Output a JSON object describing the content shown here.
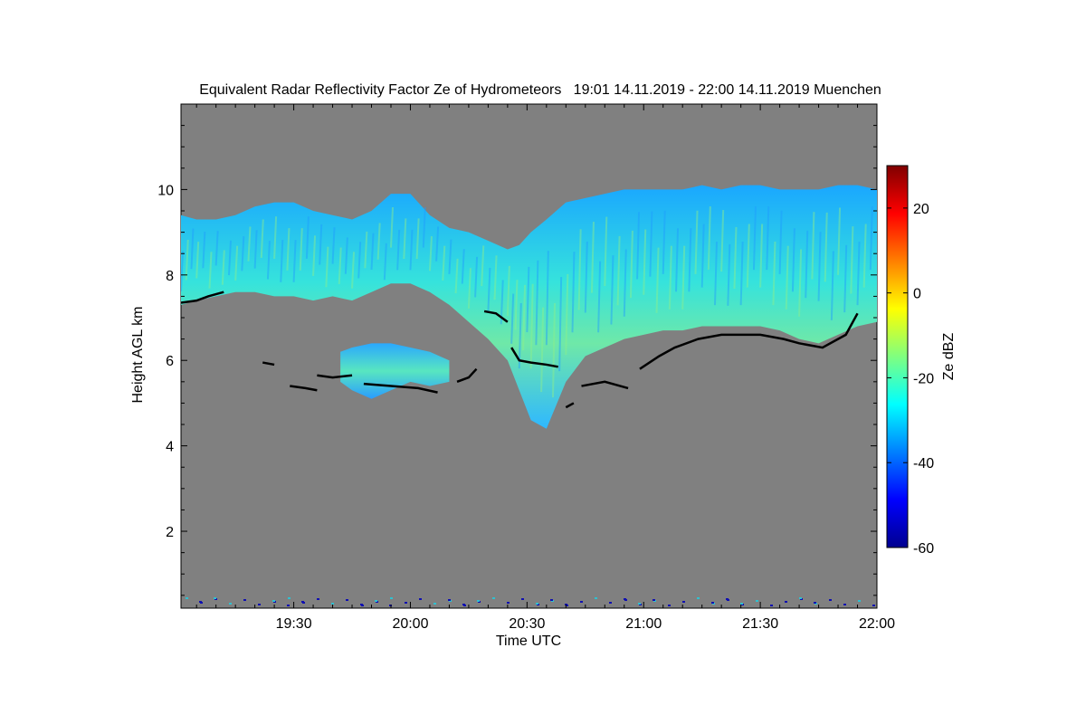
{
  "chart_data": {
    "type": "heatmap",
    "title": "Equivalent Radar Reflectivity Factor Ze of Hydrometeors   19:01 14.11.2019 - 22:00 14.11.2019 Muenchen",
    "xlabel": "Time UTC",
    "ylabel": "Height AGL km",
    "x_range_minutes_after_1900": [
      1,
      180
    ],
    "xlim": [
      "19:01",
      "22:00"
    ],
    "x_ticks": [
      {
        "label": "19:30",
        "minute": 30
      },
      {
        "label": "20:00",
        "minute": 60
      },
      {
        "label": "20:30",
        "minute": 90
      },
      {
        "label": "21:00",
        "minute": 120
      },
      {
        "label": "21:30",
        "minute": 150
      },
      {
        "label": "22:00",
        "minute": 180
      }
    ],
    "ylim": [
      0.2,
      12.0
    ],
    "y_ticks": [
      2,
      4,
      6,
      8,
      10
    ],
    "background_color": "#808080",
    "colorbar": {
      "label": "Ze dBZ",
      "range": [
        -60,
        30
      ],
      "ticks": [
        -60,
        -40,
        -20,
        0,
        20
      ],
      "colormap": "jet"
    },
    "upper_cloud": {
      "minute": [
        1,
        5,
        10,
        15,
        20,
        25,
        30,
        35,
        40,
        45,
        50,
        55,
        60,
        65,
        70,
        75,
        80,
        85,
        88,
        91,
        95,
        100,
        105,
        110,
        115,
        120,
        125,
        130,
        135,
        140,
        145,
        150,
        155,
        160,
        165,
        170,
        175,
        180
      ],
      "base_km": [
        7.3,
        7.4,
        7.5,
        7.6,
        7.6,
        7.5,
        7.5,
        7.4,
        7.5,
        7.4,
        7.6,
        7.8,
        7.8,
        7.6,
        7.3,
        6.9,
        6.5,
        6.0,
        5.3,
        4.6,
        4.4,
        5.5,
        6.1,
        6.3,
        6.5,
        6.6,
        6.7,
        6.7,
        6.8,
        6.8,
        6.8,
        6.8,
        6.7,
        6.5,
        6.4,
        6.6,
        6.8,
        6.9
      ],
      "top_km": [
        9.4,
        9.3,
        9.3,
        9.4,
        9.6,
        9.7,
        9.7,
        9.5,
        9.4,
        9.3,
        9.5,
        9.9,
        9.9,
        9.4,
        9.1,
        9.0,
        8.8,
        8.6,
        8.7,
        9.0,
        9.3,
        9.7,
        9.8,
        9.9,
        10.0,
        10.0,
        10.0,
        10.0,
        10.1,
        10.0,
        10.1,
        10.1,
        10.0,
        10.0,
        10.0,
        10.1,
        10.1,
        10.0
      ]
    },
    "lower_cloud": {
      "minute": [
        42,
        45,
        50,
        55,
        60,
        65,
        70
      ],
      "base_km": [
        5.5,
        5.3,
        5.1,
        5.3,
        5.5,
        5.4,
        5.5
      ],
      "top_km": [
        6.2,
        6.3,
        6.4,
        6.4,
        6.3,
        6.2,
        6.0
      ]
    },
    "overlay_line": {
      "color": "#000000",
      "segments": [
        {
          "minute": [
            1,
            5,
            8,
            12
          ],
          "height_km": [
            7.35,
            7.4,
            7.5,
            7.6
          ]
        },
        {
          "minute": [
            22,
            25
          ],
          "height_km": [
            5.95,
            5.9
          ]
        },
        {
          "minute": [
            29,
            33,
            36
          ],
          "height_km": [
            5.4,
            5.35,
            5.3
          ]
        },
        {
          "minute": [
            36,
            40,
            45
          ],
          "height_km": [
            5.65,
            5.6,
            5.65
          ]
        },
        {
          "minute": [
            48,
            55,
            62,
            67
          ],
          "height_km": [
            5.45,
            5.4,
            5.35,
            5.25
          ]
        },
        {
          "minute": [
            72,
            75,
            77
          ],
          "height_km": [
            5.5,
            5.6,
            5.8
          ]
        },
        {
          "minute": [
            79,
            82,
            85
          ],
          "height_km": [
            7.15,
            7.1,
            6.9
          ]
        },
        {
          "minute": [
            86,
            88,
            91,
            95,
            98
          ],
          "height_km": [
            6.3,
            6.0,
            5.95,
            5.9,
            5.85
          ]
        },
        {
          "minute": [
            100,
            102
          ],
          "height_km": [
            4.9,
            5.0
          ]
        },
        {
          "minute": [
            104,
            110,
            116
          ],
          "height_km": [
            5.4,
            5.5,
            5.35
          ]
        },
        {
          "minute": [
            119,
            124,
            128,
            134,
            140,
            145,
            150,
            156,
            160,
            166,
            172,
            175
          ],
          "height_km": [
            5.8,
            6.1,
            6.3,
            6.5,
            6.6,
            6.6,
            6.6,
            6.5,
            6.4,
            6.3,
            6.6,
            7.1
          ]
        }
      ]
    }
  }
}
